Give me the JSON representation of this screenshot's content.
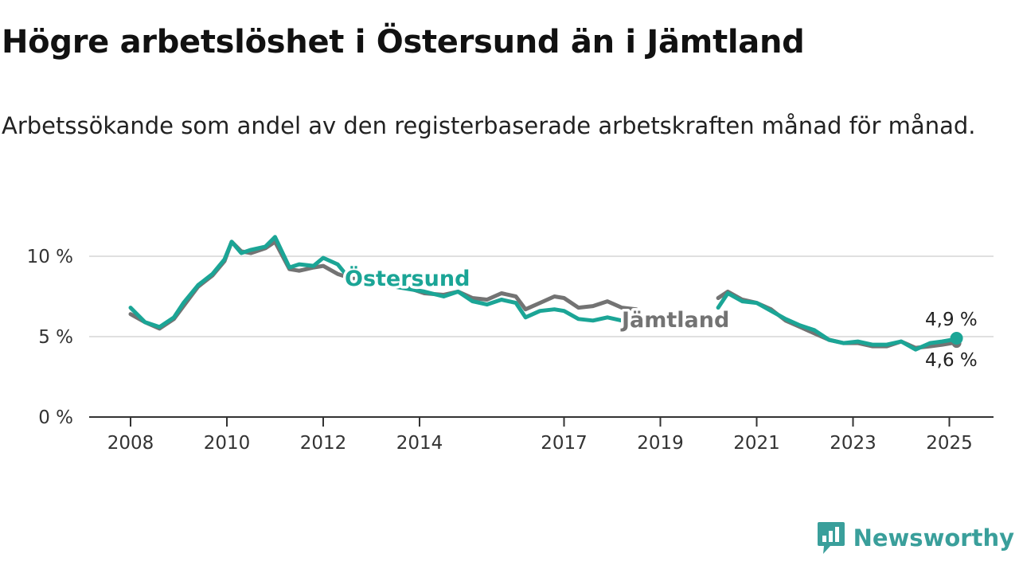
{
  "title": "Högre arbetslöshet i Östersund än i Jämtland",
  "subtitle": "Arbetssökande som andel av den registerbaserade arbetskraften månad för månad.",
  "brand": {
    "name": "Newsworthy",
    "icon": "newsworthy-logo-icon",
    "color": "#3a9f9b"
  },
  "colors": {
    "ostersund": "#1ba596",
    "jamtland": "#737373"
  },
  "chart_data": {
    "type": "line",
    "ylim": [
      0,
      10
    ],
    "yticks": [
      0,
      5,
      10
    ],
    "ytick_labels": [
      "0 %",
      "5 %",
      "10 %"
    ],
    "xlim": [
      2007.5,
      2026.0
    ],
    "xticks": [
      2008,
      2010,
      2012,
      2014,
      2017,
      2019,
      2021,
      2023,
      2025
    ],
    "xtick_labels": [
      "2008",
      "2010",
      "2012",
      "2014",
      "2017",
      "2019",
      "2021",
      "2023",
      "2025"
    ],
    "grid": true,
    "series": [
      {
        "name": "Jämtland",
        "color": "#737373",
        "end_label": "4,6 %",
        "x": [
          2008.0,
          2008.3,
          2008.6,
          2008.9,
          2009.1,
          2009.4,
          2009.7,
          2009.95,
          2010.1,
          2010.3,
          2010.5,
          2010.8,
          2011.0,
          2011.3,
          2011.5,
          2011.8,
          2012.0,
          2012.3,
          2012.6,
          2012.9,
          2013.3,
          2013.7,
          2014.1,
          2014.5,
          2014.8,
          2015.1,
          2015.4,
          2015.7,
          2016.0,
          2016.2,
          2016.5,
          2016.8,
          2017.0,
          2017.3,
          2017.6,
          2017.9,
          2018.2,
          2018.5,
          null,
          2020.2,
          2020.4,
          2020.7,
          2021.0,
          2021.3,
          2021.6,
          2021.9,
          2022.2,
          2022.5,
          2022.8,
          2023.1,
          2023.4,
          2023.7,
          2024.0,
          2024.3,
          2024.6,
          2024.85,
          2025.05,
          2025.15
        ],
        "y": [
          6.4,
          5.9,
          5.5,
          6.1,
          6.9,
          8.1,
          8.8,
          9.7,
          10.9,
          10.3,
          10.2,
          10.5,
          10.9,
          9.2,
          9.1,
          9.3,
          9.4,
          8.9,
          8.6,
          8.6,
          8.4,
          8.1,
          7.7,
          7.6,
          7.8,
          7.4,
          7.3,
          7.7,
          7.5,
          6.7,
          7.1,
          7.5,
          7.4,
          6.8,
          6.9,
          7.2,
          6.8,
          6.7,
          null,
          7.4,
          7.8,
          7.3,
          7.1,
          6.7,
          6.0,
          5.6,
          5.2,
          4.8,
          4.6,
          4.6,
          4.4,
          4.4,
          4.7,
          4.3,
          4.4,
          4.5,
          4.6,
          4.6
        ]
      },
      {
        "name": "Östersund",
        "color": "#1ba596",
        "end_label": "4,9 %",
        "x": [
          2008.0,
          2008.3,
          2008.6,
          2008.9,
          2009.1,
          2009.4,
          2009.7,
          2009.95,
          2010.1,
          2010.3,
          2010.5,
          2010.8,
          2011.0,
          2011.3,
          2011.5,
          2011.8,
          2012.0,
          2012.3,
          2012.6,
          2012.9,
          2013.3,
          2013.7,
          2014.1,
          2014.5,
          2014.8,
          2015.1,
          2015.4,
          2015.7,
          2016.0,
          2016.2,
          2016.5,
          2016.8,
          2017.0,
          2017.3,
          2017.6,
          2017.9,
          2018.2,
          2018.5,
          null,
          2020.2,
          2020.4,
          2020.7,
          2021.0,
          2021.3,
          2021.6,
          2021.9,
          2022.2,
          2022.5,
          2022.8,
          2023.1,
          2023.4,
          2023.7,
          2024.0,
          2024.3,
          2024.6,
          2024.85,
          2025.05,
          2025.15
        ],
        "y": [
          6.8,
          5.9,
          5.6,
          6.2,
          7.1,
          8.2,
          8.9,
          9.8,
          10.9,
          10.2,
          10.4,
          10.6,
          11.2,
          9.3,
          9.5,
          9.4,
          9.9,
          9.5,
          8.4,
          8.4,
          8.2,
          8.0,
          7.8,
          7.5,
          7.8,
          7.2,
          7.0,
          7.3,
          7.1,
          6.2,
          6.6,
          6.7,
          6.6,
          6.1,
          6.0,
          6.2,
          6.0,
          6.0,
          null,
          6.8,
          7.7,
          7.2,
          7.1,
          6.6,
          6.1,
          5.7,
          5.4,
          4.8,
          4.6,
          4.7,
          4.5,
          4.5,
          4.7,
          4.2,
          4.6,
          4.7,
          4.8,
          4.9
        ]
      }
    ],
    "annotations": [
      {
        "text": "Östersund",
        "series": "Östersund"
      },
      {
        "text": "Jämtland",
        "series": "Jämtland"
      }
    ]
  }
}
